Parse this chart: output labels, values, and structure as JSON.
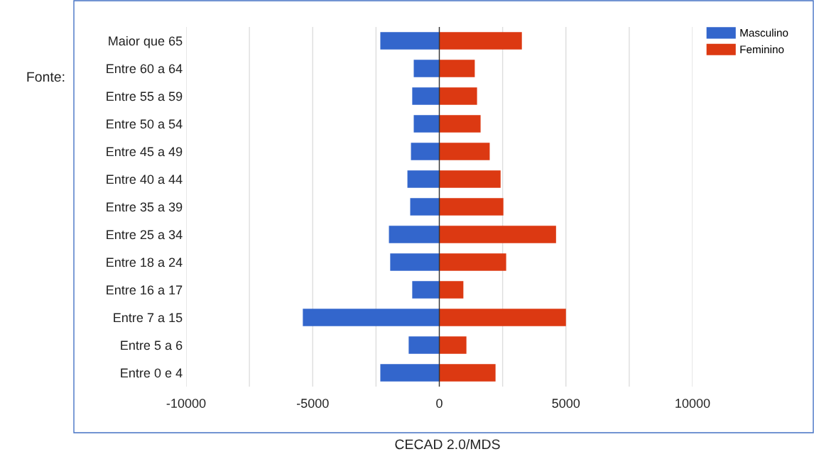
{
  "chart_data": {
    "type": "bar",
    "orientation": "horizontal",
    "stacked": true,
    "categories": [
      "Maior que 65",
      "Entre 60 a 64",
      "Entre 55 a 59",
      "Entre 50 a 54",
      "Entre 45 a 49",
      "Entre 40 a 44",
      "Entre 35 a 39",
      "Entre 25 a 34",
      "Entre 18 a 24",
      "Entre 16 a 17",
      "Entre 7 a 15",
      "Entre 5 a 6",
      "Entre 0 e 4"
    ],
    "series": [
      {
        "name": "Masculino",
        "color": "#3366cc",
        "values": [
          -2330,
          -1010,
          -1070,
          -1010,
          -1120,
          -1260,
          -1150,
          -1990,
          -1940,
          -1070,
          -5390,
          -1210,
          -2330
        ]
      },
      {
        "name": "Feminino",
        "color": "#dc3912",
        "values": [
          3260,
          1400,
          1490,
          1630,
          1990,
          2420,
          2530,
          4610,
          2640,
          950,
          5000,
          1070,
          2220
        ]
      }
    ],
    "xlim": [
      -10000,
      10000
    ],
    "xticks": [
      -10000,
      {
        "value": -7500,
        "label": null
      },
      -5000,
      {
        "value": -2500,
        "label": null
      },
      0,
      {
        "value": 2500,
        "label": null
      },
      5000,
      {
        "value": 7500,
        "label": null
      },
      10000
    ],
    "ref_lines": [
      {
        "axis": "x",
        "value": 0,
        "color": "#333333"
      }
    ],
    "grid": "x",
    "legend": "top right",
    "annotations": [
      "Fonte:",
      "CECAD 2.0/MDS"
    ]
  }
}
